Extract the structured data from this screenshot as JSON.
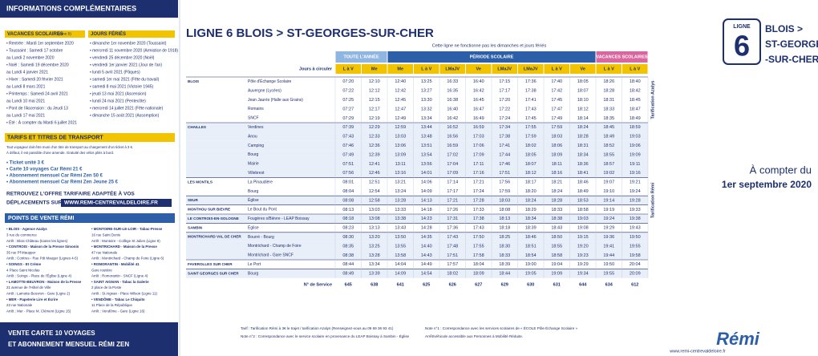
{
  "left": {
    "title": "INFORMATIONS COMPLÉMENTAIRES",
    "vacances_title": "VACANCES SCOLAIRES",
    "vacances_zone": "(zone B)",
    "vacances": [
      "• Rentrée : Mardi 1er septembre 2020",
      "• Toussaint : Samedi 17 octobre",
      "au Lundi 2 novembre 2020",
      "• Noël : Samedi 19 décembre 2020",
      "au Lundi 4 janvier 2021",
      "• Hiver : Samedi 20 février 2021",
      "au Lundi 8 mars 2021",
      "• Printemps : Samedi 24 avril 2021",
      "au Lundi 10 mai 2021",
      "• Pont de l'Ascension : du Jeudi 13",
      "au Lundi 17 mai 2021",
      "• Été : À compter du Mardi 6 juillet 2021"
    ],
    "feries_title": "JOURS FÉRIÉS",
    "feries": [
      "• dimanche 1er novembre 2020 (Toussaint)",
      "• mercredi 11 novembre 2020 (Armistice de 1918)",
      "• vendredi 25 décembre 2020 (Noël)",
      "• vendredi 1er janvier 2021 (Jour de l'an)",
      "• lundi 5 avril 2021 (Pâques)",
      "• samedi 1er mai 2021 (Fête du travail)",
      "• samedi 8 mai 2021 (Victoire 1945)",
      "• jeudi 13 mai 2021 (Ascension)",
      "• lundi 24 mai 2021 (Pentecôte)",
      "• mercredi 14 juillet 2021 (Fête nationale)",
      "• dimanche 15 août 2021 (Assomption)"
    ],
    "tarifs_title": "TARIFS ET TITRES DE TRANSPORT",
    "tarifs_text": [
      "Tout voyageur doit être muni d'un titre de transport au chargement d'un ticket à 3 €.",
      "À défaut, il est passible d'une amende. Gratuité des vélos pliés à bord."
    ],
    "tarifs_list": [
      "• Ticket unité 3 €",
      "• Carte 10 voyages Car Rémi 21 €",
      "• Abonnement mensuel Car Rémi Zen 50 €",
      "• Abonnement mensuel Car Rémi Zen Jeune 25 €"
    ],
    "offre": "RETROUVEZ L'OFFRE TARIFAIRE ADAPTÉE À VOS",
    "offre2": "DÉPLACEMENTS SUR",
    "offre_url": "WWW.REMI-CENTREVALDELOIRE.FR",
    "pv_title": "POINTS DE VENTE RÉMI",
    "pv_left": [
      "• BLOIS - Agence Azalys",
      "3 rue du commerce",
      "Arrêt : Blois Château (toutes les lignes)",
      "• CONTROIS - Maison de la Presse Simonin",
      "35 rue Pf Maupper",
      "Arrêt : Contres - Rue Pdt Mauger (Lignes 4-5)",
      "• SOINGS - Et Crème",
      "4 Place Saint Nicolas",
      "Arrêt : Soings - Place de l'Église (Ligne 4)",
      "• LAMOTTE-BEUVRON - Maison de la Presse",
      "21 avenue de l'Hôtel de Ville",
      "Arrêt : Lamotte-Beuvron - Gare (Ligne 2)",
      "• MER - Papeterie Lire et Écrire",
      "23 rue Nationale",
      "Arrêt : Mer - Place M. Clément (Ligne 15)"
    ],
    "pv_right": [
      "• MONTOIRE-SUR-LE-LOIR - Tabac-Presse",
      "16 rue Saint Denis",
      "Arrêt : Montoire - Collège St Julien (Ligne 9)",
      "• MONTRICHARD - Maison de la Presse",
      "47 rue Nationale",
      "Arrêt : Montrichard - Champ de Foire (Ligne 6)",
      "• ROMORANTIN - Mobilité 41",
      "Gare routière",
      "Arrêt : Romorantin - SNCF (Ligne 4)",
      "• SAINT AIGNAN - Tabac la Galerie",
      "2 place de la Poste",
      "Arrêt : St Aignan - Place Wilson (Ligne 11)",
      "• VENDÔME - Tabac Le Chiquito",
      "11 Place de la République",
      "Arrêt : Vendôme - Gare (Ligne 16)"
    ],
    "vente1": "VENTE CARTE 10 VOYAGES",
    "vente2": "ET ABONNEMENT MENSUEL RÉMI ZEN"
  },
  "header": {
    "title": "LIGNE 6 BLOIS > ST-GEORGES-SUR-CHER",
    "subtitle": "Cette ligne ne fonctionne pas les dimanches et jours fériés"
  },
  "table": {
    "periods": [
      "TOUTE L'ANNÉE",
      "PÉRIODE SCOLAIRE",
      "VACANCES SCOLAIRES"
    ],
    "days_label": "Jours à circuler",
    "days": [
      "L à V",
      "Me",
      "Me",
      "L à V",
      "LMaJV",
      "Ve",
      "LMaJV",
      "LMaJV",
      "L à V",
      "Ve",
      "L à V",
      "L à V"
    ],
    "rows": [
      {
        "commune": "BLOIS",
        "stop": "Pôle d'Échange Scolaire",
        "times": [
          "07:20",
          "12:10",
          "12:40",
          "13:25",
          "16:33",
          "16:40",
          "17:15",
          "17:36",
          "17:40",
          "18:05",
          "18:26",
          "18:40"
        ]
      },
      {
        "commune": null,
        "stop": "Auvergne (Lycées)",
        "times": [
          "07:22",
          "12:12",
          "12:42",
          "13:27",
          "16:35",
          "16:42",
          "17:17",
          "17:38",
          "17:42",
          "18:07",
          "18:28",
          "18:42"
        ]
      },
      {
        "commune": null,
        "stop": "Jean Jaurès (Halle aux Grains)",
        "times": [
          "07:25",
          "12:15",
          "12:45",
          "13:30",
          "16:38",
          "16:45",
          "17:20",
          "17:41",
          "17:45",
          "18:10",
          "18:31",
          "18:45"
        ]
      },
      {
        "commune": null,
        "stop": "Romains",
        "times": [
          "07:27",
          "12:17",
          "12:47",
          "13:32",
          "16:40",
          "16:47",
          "17:22",
          "17:43",
          "17:47",
          "18:12",
          "18:33",
          "18:47"
        ]
      },
      {
        "commune": null,
        "stop": "SNCF",
        "times": [
          "07:29",
          "12:19",
          "12:49",
          "13:34",
          "16:42",
          "16:49",
          "17:24",
          "17:45",
          "17:49",
          "18:14",
          "18:35",
          "18:49"
        ]
      },
      {
        "commune": "CHAILLES",
        "stop": "Verdines",
        "times": [
          "07:39",
          "12:29",
          "12:59",
          "13:44",
          "16:52",
          "16:59",
          "17:34",
          "17:55",
          "17:59",
          "18:24",
          "18:45",
          "18:59"
        ]
      },
      {
        "commune": null,
        "stop": "Anou",
        "times": [
          "07:43",
          "12:33",
          "13:03",
          "13:48",
          "16:56",
          "17:03",
          "17:38",
          "17:59",
          "18:03",
          "18:28",
          "18:49",
          "19:03"
        ]
      },
      {
        "commune": null,
        "stop": "Camping",
        "times": [
          "07:46",
          "12:36",
          "13:06",
          "13:51",
          "16:59",
          "17:06",
          "17:41",
          "18:02",
          "18:06",
          "18:31",
          "18:52",
          "19:06"
        ]
      },
      {
        "commune": null,
        "stop": "Bourg",
        "times": [
          "07:49",
          "12:39",
          "13:09",
          "13:54",
          "17:02",
          "17:09",
          "17:44",
          "18:05",
          "18:09",
          "18:34",
          "18:55",
          "19:09"
        ]
      },
      {
        "commune": null,
        "stop": "Mairie",
        "times": [
          "07:51",
          "12:41",
          "13:11",
          "13:56",
          "17:04",
          "17:11",
          "17:46",
          "18:07",
          "18:11",
          "18:36",
          "18:57",
          "19:11"
        ]
      },
      {
        "commune": null,
        "stop": "Villebrest",
        "times": [
          "07:56",
          "12:46",
          "13:16",
          "14:01",
          "17:09",
          "17:16",
          "17:51",
          "18:12",
          "18:16",
          "18:41",
          "19:02",
          "19:16"
        ]
      },
      {
        "commune": "LES MONTILS",
        "stop": "La Pinaudière",
        "times": [
          "08:01",
          "12:51",
          "13:21",
          "14:06",
          "17:14",
          "17:21",
          "17:56",
          "18:17",
          "18:21",
          "18:46",
          "19:07",
          "19:21"
        ]
      },
      {
        "commune": null,
        "stop": "Bourg",
        "times": [
          "08:04",
          "12:54",
          "13:24",
          "14:09",
          "17:17",
          "17:24",
          "17:59",
          "18:20",
          "18:24",
          "18:49",
          "19:10",
          "19:24"
        ]
      },
      {
        "commune": "SEUR",
        "stop": "Église",
        "times": [
          "08:08",
          "12:58",
          "13:28",
          "14:13",
          "17:21",
          "17:28",
          "18:03",
          "18:24",
          "18:28",
          "18:53",
          "19:14",
          "19:28"
        ]
      },
      {
        "commune": "MONTHOU SUR BIEVRE",
        "stop": "Le Bout du Pont",
        "times": [
          "08:13",
          "13:03",
          "13:33",
          "14:18",
          "17:26",
          "17:33",
          "18:08",
          "18:29",
          "18:33",
          "18:58",
          "19:19",
          "19:33"
        ]
      },
      {
        "commune": "LE CONTROIS-EN-SOLOGNE",
        "stop": "Fougères s/Bièvre - LEAP Boissay",
        "times": [
          "08:18",
          "13:08",
          "13:38",
          "14:23",
          "17:31",
          "17:38",
          "18:13",
          "18:34",
          "18:38",
          "19:03",
          "19:24",
          "19:38"
        ]
      },
      {
        "commune": "SAMBIN",
        "stop": "Église",
        "times": [
          "08:23",
          "13:13",
          "13:43",
          "14:28",
          "17:36",
          "17:43",
          "18:18",
          "18:39",
          "18:43",
          "19:08",
          "19:29",
          "19:43"
        ]
      },
      {
        "commune": "MONTRICHARD VAL DE CHER",
        "stop": "Bourré - Bourg",
        "times": [
          "08:30",
          "13:20",
          "13:50",
          "14:35",
          "17:43",
          "17:50",
          "18:25",
          "18:46",
          "18:50",
          "19:15",
          "19:36",
          "19:50"
        ]
      },
      {
        "commune": null,
        "stop": "Montrichard - Champ de Foire",
        "times": [
          "08:35",
          "13:25",
          "13:55",
          "14:40",
          "17:48",
          "17:55",
          "18:30",
          "18:51",
          "18:55",
          "19:20",
          "19:41",
          "19:55"
        ]
      },
      {
        "commune": null,
        "stop": "Montrichard - Gare SNCF",
        "times": [
          "08:38",
          "13:28",
          "13:58",
          "14:43",
          "17:51",
          "17:58",
          "18:33",
          "18:54",
          "18:58",
          "19:23",
          "19:44",
          "19:58"
        ]
      },
      {
        "commune": "FAVEROLLES SUR CHER",
        "stop": "Le Port",
        "times": [
          "08:44",
          "13:34",
          "14:04",
          "14:49",
          "17:57",
          "18:04",
          "18:39",
          "19:00",
          "19:04",
          "19:29",
          "19:50",
          "20:04"
        ]
      },
      {
        "commune": "SAINT GEORGES SUR CHER",
        "stop": "Bourg",
        "times": [
          "08:49",
          "13:39",
          "14:09",
          "14:54",
          "18:02",
          "18:09",
          "18:44",
          "19:05",
          "19:09",
          "19:34",
          "19:55",
          "20:09"
        ]
      }
    ],
    "service_label": "N° de Service",
    "services": [
      "645",
      "638",
      "641",
      "625",
      "626",
      "627",
      "629",
      "630",
      "631",
      "644",
      "634",
      "612"
    ]
  },
  "notes": [
    "Tarif : Tarification Rémi à 3€ le trajet / tarification Azalys (Renseignez-vous au 09 69 36 93 41)",
    "Note n°1 : Correspondance avec les services scolaires de « ÉCOLE Pôle Échange Scolaire »",
    "Note n°2 : Correspondance avec le service scolaire en provenance du LEAP Boissay à Sambin - Église",
    "Arrêt/véhicule accessible aux Personnes à Mobilité Réduite."
  ],
  "right": {
    "ligne": "LIGNE",
    "number": "6",
    "dest": [
      "BLOIS >",
      "ST-GEORGES",
      "-SUR-CHER"
    ],
    "start": "À compter du",
    "date": "1er septembre 2020",
    "tarif_azalys": "Tarification Azalys",
    "tarif_remi": "Tarification Rémi",
    "brand": "Rémi",
    "url": "www.remi-centrevaldeloire.fr"
  }
}
